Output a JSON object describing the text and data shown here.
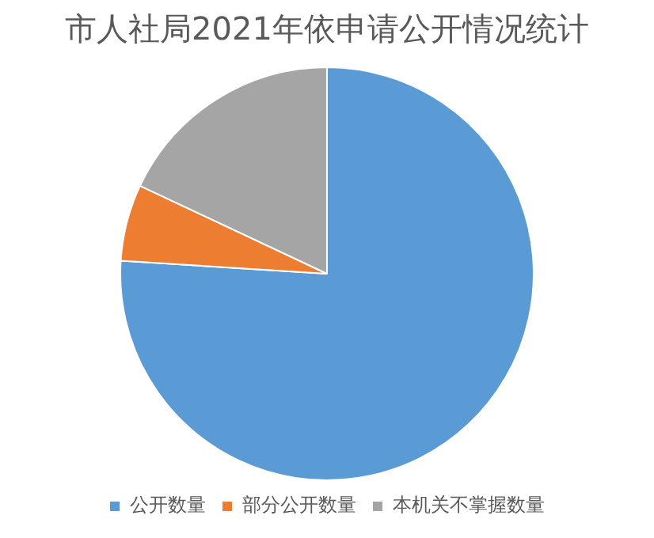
{
  "chart_data": {
    "type": "pie",
    "title": "市人社局2021年依申请公开情况统计",
    "categories": [
      "公开数量",
      "部分公开数量",
      "本机关不掌握数量"
    ],
    "values": [
      76,
      6,
      18
    ],
    "colors": [
      "#5b9bd5",
      "#ed7d31",
      "#a5a5a5"
    ],
    "legend": "bottom"
  }
}
